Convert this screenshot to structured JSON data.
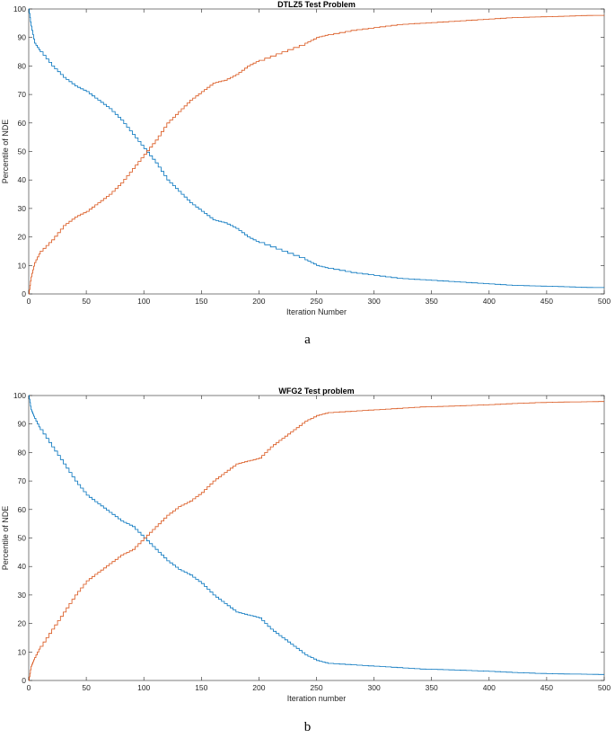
{
  "chart_data": [
    {
      "type": "line",
      "title": "DTLZ5 Test Problem",
      "xlabel": "Iteration Number",
      "ylabel": "Percentile of NDE",
      "xlim": [
        0,
        500
      ],
      "ylim": [
        0,
        100
      ],
      "xticks": [
        "0",
        "50",
        "100",
        "150",
        "200",
        "250",
        "300",
        "350",
        "400",
        "450",
        "500"
      ],
      "yticks": [
        "0",
        "10",
        "20",
        "30",
        "40",
        "50",
        "60",
        "70",
        "80",
        "90",
        "100"
      ],
      "grid": false,
      "legend": "none",
      "caption": "a",
      "series": [
        {
          "color": "#0072BD",
          "x": [
            0,
            2,
            5,
            10,
            20,
            30,
            40,
            50,
            60,
            70,
            80,
            90,
            100,
            110,
            120,
            130,
            140,
            150,
            160,
            170,
            180,
            190,
            200,
            220,
            240,
            250,
            260,
            280,
            300,
            320,
            340,
            360,
            380,
            400,
            420,
            440,
            460,
            480,
            500
          ],
          "y": [
            100,
            94,
            88,
            85,
            80,
            76,
            73,
            71,
            68,
            65,
            61,
            56,
            51,
            46,
            40,
            36,
            32,
            29,
            26,
            25,
            23,
            20,
            18,
            15,
            12,
            10,
            9,
            7.5,
            6.5,
            5.5,
            5,
            4.5,
            4,
            3.5,
            3,
            2.8,
            2.6,
            2.3,
            2.2
          ]
        },
        {
          "color": "#D95319",
          "x": [
            0,
            2,
            5,
            10,
            20,
            30,
            40,
            50,
            60,
            70,
            80,
            90,
            100,
            110,
            120,
            130,
            140,
            150,
            160,
            170,
            180,
            190,
            200,
            220,
            240,
            250,
            260,
            280,
            300,
            320,
            340,
            360,
            380,
            400,
            420,
            440,
            460,
            480,
            500
          ],
          "y": [
            0,
            6,
            11,
            15,
            19,
            24,
            27,
            29,
            32,
            35,
            39,
            44,
            49,
            54,
            60,
            64,
            68,
            71,
            74,
            75,
            77,
            80,
            82,
            85,
            88,
            90,
            91,
            92.5,
            93.5,
            94.5,
            95,
            95.5,
            96,
            96.5,
            97,
            97.2,
            97.4,
            97.7,
            97.8
          ]
        }
      ]
    },
    {
      "type": "line",
      "title": "WFG2 Test problem",
      "xlabel": "Iteration number",
      "ylabel": "Percentile of NDE",
      "xlim": [
        0,
        500
      ],
      "ylim": [
        0,
        100
      ],
      "xticks": [
        "0",
        "50",
        "100",
        "150",
        "200",
        "250",
        "300",
        "350",
        "400",
        "450",
        "500"
      ],
      "yticks": [
        "0",
        "10",
        "20",
        "30",
        "40",
        "50",
        "60",
        "70",
        "80",
        "90",
        "100"
      ],
      "grid": false,
      "legend": "none",
      "caption": "b",
      "series": [
        {
          "color": "#0072BD",
          "x": [
            0,
            2,
            5,
            10,
            20,
            30,
            40,
            50,
            60,
            70,
            80,
            90,
            100,
            110,
            120,
            130,
            140,
            150,
            160,
            170,
            180,
            190,
            200,
            210,
            220,
            230,
            240,
            250,
            260,
            280,
            300,
            320,
            340,
            360,
            380,
            400,
            420,
            440,
            460,
            480,
            500
          ],
          "y": [
            100,
            95,
            92,
            88,
            82,
            76,
            70,
            65,
            62,
            59,
            56,
            54,
            50,
            46,
            42,
            39,
            37,
            34,
            30,
            27,
            24,
            23,
            22,
            18,
            15,
            12,
            9,
            7,
            6,
            5.5,
            5,
            4.5,
            4,
            3.8,
            3.5,
            3.2,
            2.8,
            2.5,
            2.3,
            2.2,
            2.1
          ]
        },
        {
          "color": "#D95319",
          "x": [
            0,
            2,
            5,
            10,
            20,
            30,
            40,
            50,
            60,
            70,
            80,
            90,
            100,
            110,
            120,
            130,
            140,
            150,
            160,
            170,
            180,
            190,
            200,
            210,
            220,
            230,
            240,
            250,
            260,
            280,
            300,
            320,
            340,
            360,
            380,
            400,
            420,
            440,
            460,
            480,
            500
          ],
          "y": [
            0,
            5,
            8,
            12,
            18,
            24,
            30,
            35,
            38,
            41,
            44,
            46,
            50,
            54,
            58,
            61,
            63,
            66,
            70,
            73,
            76,
            77,
            78,
            82,
            85,
            88,
            91,
            93,
            94,
            94.5,
            95,
            95.5,
            96,
            96.2,
            96.5,
            96.8,
            97.2,
            97.5,
            97.7,
            97.8,
            97.9
          ]
        }
      ]
    }
  ]
}
